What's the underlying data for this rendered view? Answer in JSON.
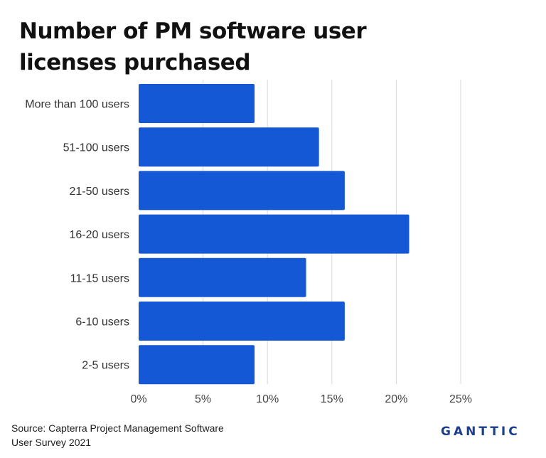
{
  "chart_data": {
    "type": "bar",
    "orientation": "horizontal",
    "title": "Number of PM software user licenses purchased",
    "categories": [
      "More than 100 users",
      "51-100 users",
      "21-50 users",
      "16-20 users",
      "11-15 users",
      "6-10 users",
      "2-5 users"
    ],
    "values": [
      9,
      14,
      16,
      21,
      13,
      16,
      9
    ],
    "unit": "%",
    "xlim": [
      0,
      25
    ],
    "xticks": [
      "0%",
      "5%",
      "10%",
      "15%",
      "20%",
      "25%"
    ],
    "xtick_values": [
      0,
      5,
      10,
      15,
      20,
      25
    ],
    "grid": true,
    "bar_color": "#1558d6"
  },
  "source": {
    "line1": "Source: Capterra Project Management Software",
    "line2": "User Survey 2021"
  },
  "brand": {
    "name": "GANTTIC",
    "color": "#1c3f8c"
  }
}
